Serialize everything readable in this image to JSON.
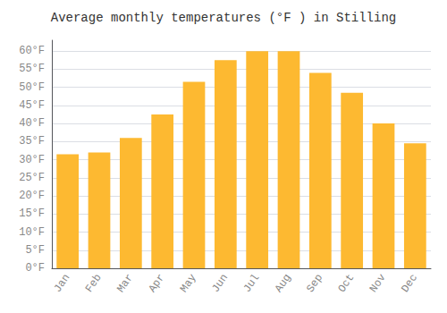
{
  "chart_data": {
    "type": "bar",
    "title": "Average monthly temperatures (°F ) in Stilling",
    "categories": [
      "Jan",
      "Feb",
      "Mar",
      "Apr",
      "May",
      "Jun",
      "Jul",
      "Aug",
      "Sep",
      "Oct",
      "Nov",
      "Dec"
    ],
    "values": [
      31.5,
      32.0,
      36.0,
      42.5,
      51.5,
      57.5,
      60.0,
      60.0,
      54.0,
      48.5,
      40.0,
      34.5
    ],
    "color": "#FDB931",
    "ylim": [
      0,
      63
    ],
    "yticks": [
      {
        "value": 0,
        "label": "0°F"
      },
      {
        "value": 5,
        "label": "5°F"
      },
      {
        "value": 10,
        "label": "10°F"
      },
      {
        "value": 15,
        "label": "15°F"
      },
      {
        "value": 20,
        "label": "20°F"
      },
      {
        "value": 25,
        "label": "25°F"
      },
      {
        "value": 30,
        "label": "30°F"
      },
      {
        "value": 35,
        "label": "35°F"
      },
      {
        "value": 40,
        "label": "40°F"
      },
      {
        "value": 45,
        "label": "45°F"
      },
      {
        "value": 50,
        "label": "50°F"
      },
      {
        "value": 55,
        "label": "55°F"
      },
      {
        "value": 60,
        "label": "60°F"
      }
    ],
    "grid": true
  }
}
